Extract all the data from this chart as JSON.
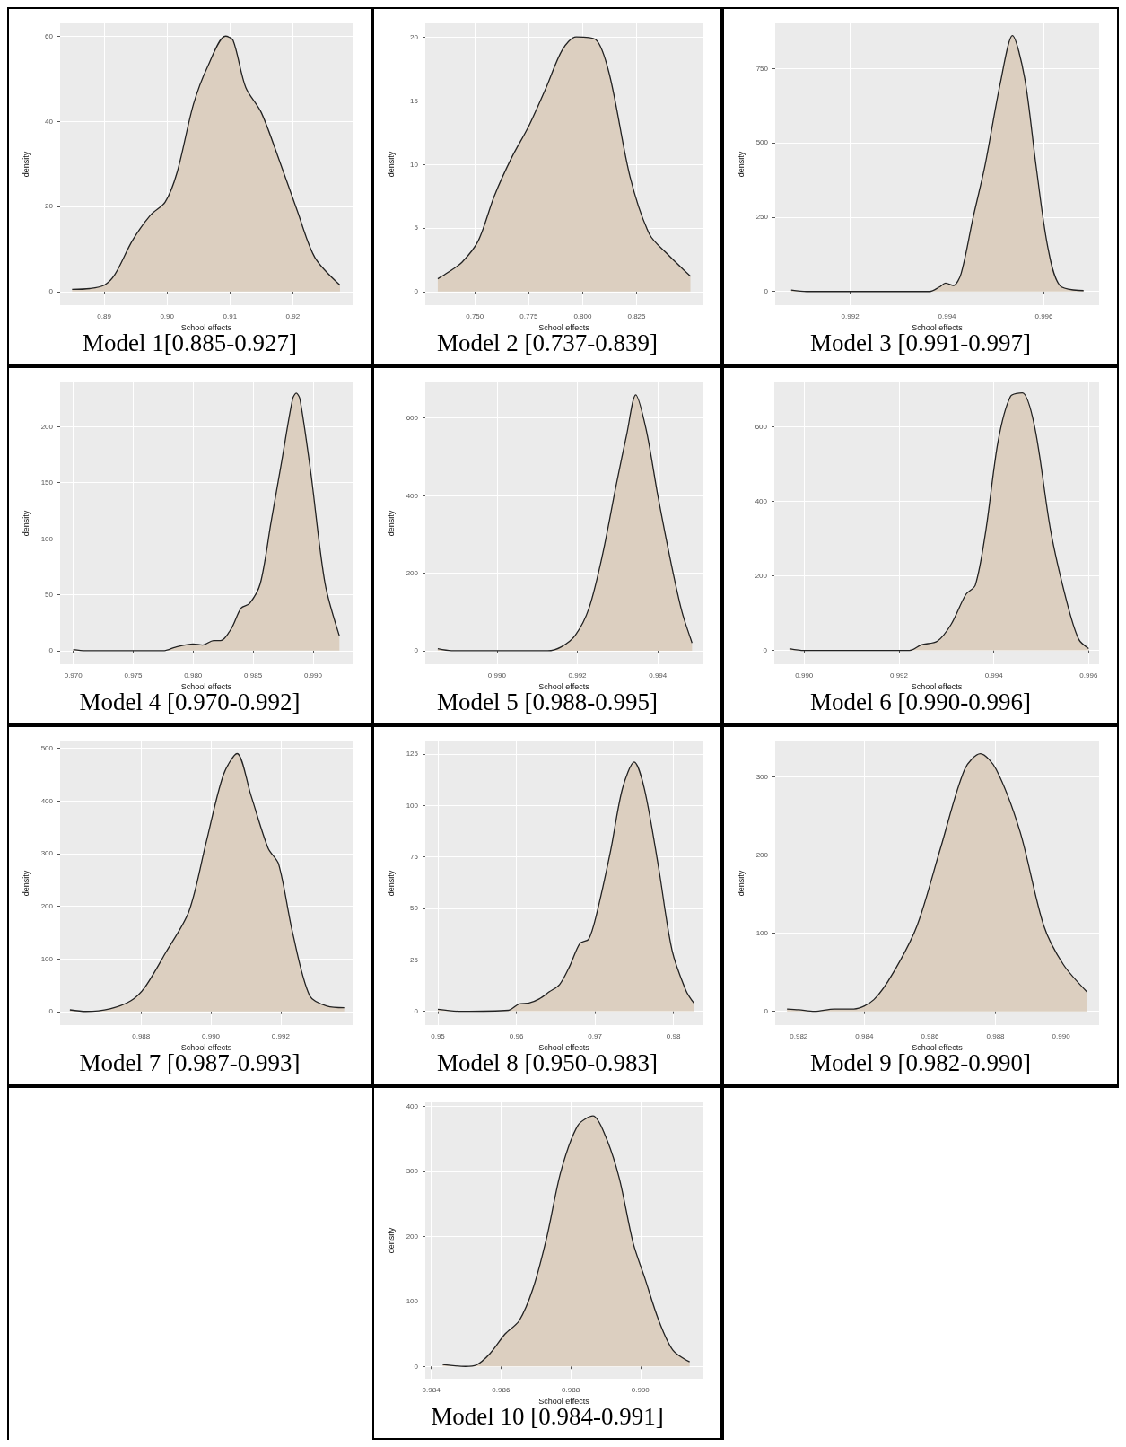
{
  "chart_data": [
    {
      "type": "area",
      "title": "Model 1[0.885-0.927]",
      "xlabel": "School effects",
      "ylabel": "density",
      "xlim": [
        0.883,
        0.9295
      ],
      "ylim": [
        -3.2,
        63
      ],
      "xticks": [
        0.89,
        {
          "value": 0.9,
          "label": "0.90"
        },
        0.91,
        0.92
      ],
      "yticks": [
        0,
        20,
        40,
        60
      ],
      "grid": true,
      "series": [
        {
          "color": "#dccfc0",
          "x": [
            0.8849,
            0.8877,
            0.89,
            0.8917,
            0.8945,
            0.8974,
            0.8997,
            0.9016,
            0.9042,
            0.9065,
            0.9093,
            0.9105,
            0.9125,
            0.915,
            0.9178,
            0.9207,
            0.9235,
            0.9275
          ],
          "values": [
            0.5,
            0.7,
            1.5,
            4,
            12,
            18,
            21,
            28,
            44,
            53,
            60,
            59,
            48,
            42,
            31,
            19,
            8,
            1.5
          ]
        }
      ]
    },
    {
      "type": "area",
      "title": "Model 2 [0.737-0.839]",
      "xlabel": "School effects",
      "ylabel": "density",
      "xlim": [
        0.727,
        0.8556
      ],
      "ylim": [
        -1.07,
        21.07
      ],
      "xticks": [
        {
          "value": 0.75,
          "label": "0.750"
        },
        0.775,
        {
          "value": 0.8,
          "label": "0.800"
        },
        0.825
      ],
      "yticks": [
        0,
        5,
        10,
        15,
        20
      ],
      "grid": true,
      "series": [
        {
          "color": "#dccfc0",
          "x": [
            0.7328,
            0.7375,
            0.744,
            0.7516,
            0.759,
            0.767,
            0.775,
            0.783,
            0.7906,
            0.797,
            0.806,
            0.8125,
            0.822,
            0.831,
            0.839,
            0.85
          ],
          "values": [
            1,
            1.5,
            2.3,
            4,
            7.5,
            10.5,
            13,
            16,
            19,
            20,
            19.8,
            17,
            9,
            4.5,
            3,
            1.2
          ]
        }
      ]
    },
    {
      "type": "area",
      "title": "Model 3 [0.991-0.997]",
      "xlabel": "School effects",
      "ylabel": "density",
      "xlim": [
        0.99045,
        0.99714
      ],
      "ylim": [
        -46,
        901
      ],
      "xticks": [
        0.992,
        0.994,
        0.996
      ],
      "yticks": [
        0,
        250,
        500,
        750
      ],
      "grid": true,
      "series": [
        {
          "color": "#dccfc0",
          "x": [
            0.99078,
            0.9911,
            0.99364,
            0.99384,
            0.99397,
            0.99413,
            0.99429,
            0.99454,
            0.99478,
            0.9951,
            0.99535,
            0.9956,
            0.99584,
            0.99608,
            0.99633,
            0.99682
          ],
          "values": [
            5,
            0,
            0,
            15,
            28,
            20,
            60,
            250,
            420,
            700,
            860,
            720,
            420,
            150,
            20,
            3
          ]
        }
      ]
    },
    {
      "type": "area",
      "title": "Model 4 [0.970-0.992]",
      "xlabel": "School effects",
      "ylabel": "density",
      "xlim": [
        0.9689,
        0.9933
      ],
      "ylim": [
        -12.2,
        239.6
      ],
      "xticks": [
        {
          "value": 0.97,
          "label": "0.970"
        },
        0.975,
        {
          "value": 0.98,
          "label": "0.980"
        },
        0.985,
        {
          "value": 0.99,
          "label": "0.990"
        }
      ],
      "yticks": [
        0,
        50,
        100,
        150,
        200
      ],
      "grid": true,
      "series": [
        {
          "color": "#dccfc0",
          "x": [
            0.97,
            0.971,
            0.9776,
            0.9785,
            0.98,
            0.9808,
            0.9817,
            0.9823,
            0.9832,
            0.984,
            0.9847,
            0.9856,
            0.9865,
            0.9874,
            0.9883,
            0.9886,
            0.9889,
            0.9898,
            0.991,
            0.9922
          ],
          "values": [
            1,
            0,
            0,
            3,
            6,
            5,
            9,
            9,
            20,
            38,
            42,
            60,
            115,
            170,
            225,
            230,
            225,
            160,
            60,
            13
          ]
        }
      ]
    },
    {
      "type": "area",
      "title": "Model 5 [0.988-0.995]",
      "xlabel": "School effects",
      "ylabel": "density",
      "xlim": [
        0.98822,
        0.99511
      ],
      "ylim": [
        -35,
        692
      ],
      "xticks": [
        {
          "value": 0.99,
          "label": "0.990"
        },
        0.992,
        0.994
      ],
      "yticks": [
        0,
        200,
        400,
        600
      ],
      "grid": true,
      "series": [
        {
          "color": "#dccfc0",
          "x": [
            0.98853,
            0.98887,
            0.99126,
            0.9916,
            0.99195,
            0.99229,
            0.99263,
            0.99297,
            0.99323,
            0.99345,
            0.99371,
            0.994,
            0.99434,
            0.9946,
            0.99485
          ],
          "values": [
            5,
            0,
            0,
            10,
            40,
            110,
            250,
            430,
            560,
            660,
            570,
            400,
            220,
            100,
            20
          ]
        }
      ]
    },
    {
      "type": "area",
      "title": "Model 6 [0.990-0.996]",
      "xlabel": "School effects",
      "xlim": [
        0.98937,
        0.99622
      ],
      "ylim": [
        -37,
        718
      ],
      "xticks": [
        {
          "value": 0.99,
          "label": "0.990"
        },
        0.992,
        0.994,
        0.996
      ],
      "yticks": [
        0,
        200,
        400,
        600
      ],
      "grid": true,
      "series": [
        {
          "color": "#dccfc0",
          "x": [
            0.98969,
            0.99,
            0.99222,
            0.99247,
            0.99281,
            0.9931,
            0.99341,
            0.99361,
            0.99383,
            0.99409,
            0.99435,
            0.9946,
            0.99486,
            0.9952,
            0.99554,
            0.99579,
            0.996
          ],
          "values": [
            5,
            0,
            0,
            15,
            25,
            70,
            150,
            175,
            320,
            560,
            680,
            690,
            600,
            320,
            130,
            30,
            5
          ]
        }
      ]
    },
    {
      "type": "area",
      "title": "Model 7 [0.987-0.993]",
      "xlabel": "School effects",
      "ylabel": "density",
      "xlim": [
        0.98568,
        0.99406
      ],
      "ylim": [
        -26,
        513
      ],
      "xticks": [
        0.988,
        {
          "value": 0.99,
          "label": "0.990"
        },
        0.992
      ],
      "yticks": [
        0,
        100,
        200,
        300,
        400,
        500
      ],
      "grid": true,
      "series": [
        {
          "color": "#dccfc0",
          "x": [
            0.98596,
            0.98642,
            0.98711,
            0.9877,
            0.9881,
            0.98869,
            0.98937,
            0.98986,
            0.99036,
            0.99075,
            0.99115,
            0.99164,
            0.99194,
            0.99234,
            0.99283,
            0.99333,
            0.99382
          ],
          "values": [
            3,
            0,
            5,
            20,
            45,
            110,
            190,
            320,
            450,
            490,
            410,
            310,
            280,
            150,
            30,
            10,
            7
          ]
        }
      ]
    },
    {
      "type": "area",
      "title": "Model 8 [0.950-0.983]",
      "xlabel": "School effects",
      "ylabel": "density",
      "xlim": [
        0.9484,
        0.9837
      ],
      "ylim": [
        -6.7,
        131
      ],
      "xticks": [
        0.95,
        0.96,
        0.97,
        0.98
      ],
      "yticks": [
        0,
        25,
        50,
        75,
        100,
        125
      ],
      "grid": true,
      "series": [
        {
          "color": "#dccfc0",
          "x": [
            0.95,
            0.9529,
            0.959,
            0.9603,
            0.9616,
            0.9629,
            0.9642,
            0.9655,
            0.9668,
            0.9681,
            0.9692,
            0.9702,
            0.972,
            0.9735,
            0.975,
            0.9763,
            0.9781,
            0.9798,
            0.9816,
            0.9826
          ],
          "values": [
            1,
            0,
            0.5,
            3.5,
            4,
            6,
            9.5,
            13,
            22,
            33,
            35,
            47,
            78,
            108,
            121,
            108,
            70,
            30,
            10,
            4
          ]
        }
      ]
    },
    {
      "type": "area",
      "title": "Model 9 [0.982-0.990]",
      "xlabel": "School effects",
      "ylabel": "density",
      "xlim": [
        0.98128,
        0.99116
      ],
      "ylim": [
        -17.6,
        345.6
      ],
      "xticks": [
        0.982,
        0.984,
        0.986,
        0.988,
        {
          "value": 0.99,
          "label": "0.990"
        }
      ],
      "yticks": [
        0,
        100,
        200,
        300
      ],
      "grid": true,
      "series": [
        {
          "color": "#dccfc0",
          "x": [
            0.98164,
            0.982,
            0.98248,
            0.98308,
            0.98368,
            0.98429,
            0.98489,
            0.98561,
            0.98633,
            0.98706,
            0.98754,
            0.98802,
            0.98875,
            0.98947,
            0.99007,
            0.99079
          ],
          "values": [
            3,
            2,
            0,
            3,
            3,
            15,
            50,
            110,
            210,
            310,
            330,
            310,
            230,
            110,
            60,
            25
          ]
        }
      ]
    },
    {
      "type": "area",
      "title": "Model 10 [0.984-0.991]",
      "xlabel": "School effects",
      "ylabel": "density",
      "xlim": [
        0.98383,
        0.99178
      ],
      "ylim": [
        -19,
        406
      ],
      "xticks": [
        0.984,
        0.986,
        0.988,
        {
          "value": 0.99,
          "label": "0.990"
        }
      ],
      "yticks": [
        0,
        100,
        200,
        300,
        400
      ],
      "grid": true,
      "series": [
        {
          "color": "#dccfc0",
          "x": [
            0.98433,
            0.98498,
            0.98529,
            0.98569,
            0.98612,
            0.98652,
            0.98692,
            0.98732,
            0.98772,
            0.9882,
            0.98864,
            0.98899,
            0.98939,
            0.98979,
            0.99013,
            0.99053,
            0.99093,
            0.99141
          ],
          "values": [
            3,
            0,
            2,
            20,
            50,
            70,
            120,
            200,
            300,
            370,
            385,
            355,
            290,
            190,
            135,
            70,
            25,
            7
          ]
        }
      ]
    }
  ]
}
